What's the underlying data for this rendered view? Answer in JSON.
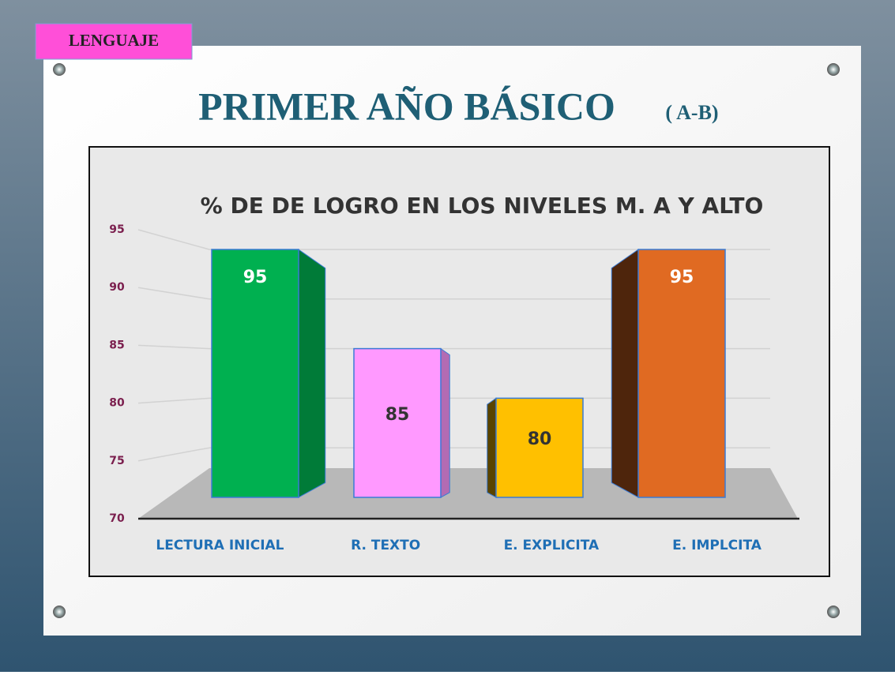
{
  "slide": {
    "tag": "LENGUAJE",
    "title": "PRIMER  AÑO BÁSICO",
    "subtitle": "( A-B)"
  },
  "chart_data": {
    "type": "bar3d",
    "title": "% DE  DE LOGRO EN LOS NIVELES M. A Y ALTO",
    "categories": [
      "LECTURA INICIAL",
      "R. TEXTO",
      "E. EXPLICITA",
      "E. IMPLCITA"
    ],
    "values": [
      95,
      85,
      80,
      95
    ],
    "colors": [
      "#00b050",
      "#ff99ff",
      "#ffc000",
      "#e06a22"
    ],
    "ylim": [
      70,
      95
    ],
    "yticks": [
      70,
      75,
      80,
      85,
      90,
      95
    ],
    "grid": true
  }
}
